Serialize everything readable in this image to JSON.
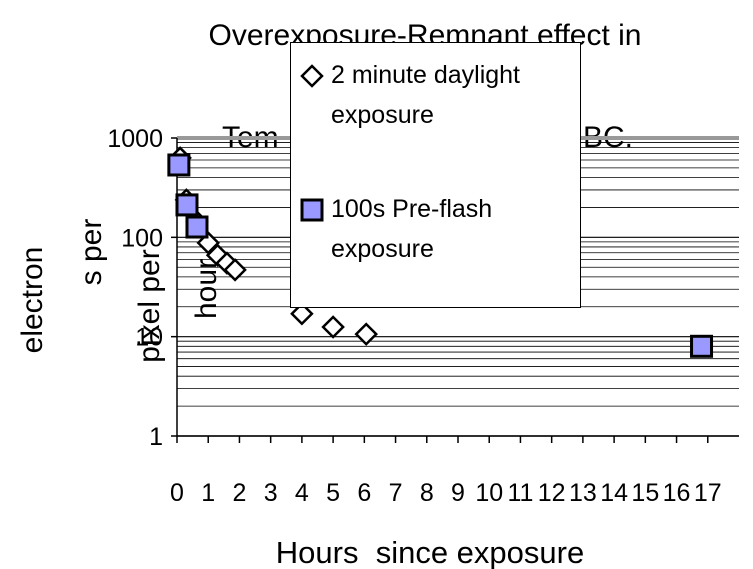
{
  "chart_data": {
    "type": "scatter",
    "title": [
      "Overexposure-Remnant effect in",
      "Tem",
      "BC."
    ],
    "xlabel": "Hours  since exposure",
    "ylabel": [
      "electron",
      "s per",
      "pixel per",
      "hour"
    ],
    "log_y": true,
    "grid": true,
    "xlim": [
      0,
      18
    ],
    "xticks": [
      0,
      1,
      2,
      3,
      4,
      5,
      6,
      7,
      8,
      9,
      10,
      11,
      12,
      13,
      14,
      15,
      16,
      17
    ],
    "ylim": [
      1,
      1000
    ],
    "yticks": [
      1,
      10,
      100,
      1000
    ],
    "series": [
      {
        "name": "2 minute daylight exposure",
        "marker": "diamond",
        "color": "#ffffff",
        "x": [
          0.1,
          0.3,
          0.64,
          1.0,
          1.3,
          1.6,
          1.86,
          4.0,
          5.0,
          6.06
        ],
        "values": [
          630,
          238,
          143,
          88,
          66,
          55,
          47,
          17,
          12.5,
          10.6
        ]
      },
      {
        "name": "100s Pre-flash exposure",
        "marker": "square",
        "color": "#9999ff",
        "x": [
          0.06,
          0.32,
          0.64,
          16.8
        ],
        "values": [
          535,
          212,
          127,
          8
        ]
      }
    ]
  }
}
